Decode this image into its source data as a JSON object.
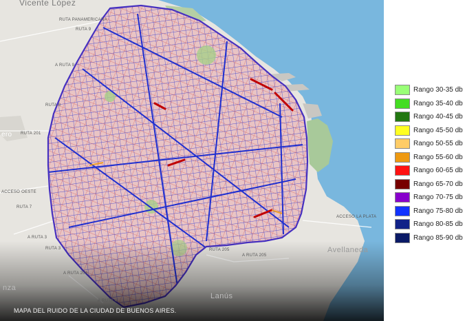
{
  "map": {
    "labels": {
      "vicente_lopez": "Vicente López",
      "ruta_panamericana": "RUTA PANAMERICANA",
      "ruta_9_top": "RUTA 9",
      "a_ruta_9": "A RUTA 9",
      "ruta_8": "RUTA 8",
      "zero": "ero",
      "ruta_201": "RUTA 201",
      "acceso_oeste": "ACCESO OESTE",
      "ruta_7": "RUTA 7",
      "a_ruta_3": "A RUTA 3",
      "ruta_3": "RUTA 3",
      "ruta_205": "RUTA 205",
      "a_ruta_205": "A RUTA 205",
      "a_ruta_204": "A RUTA 204",
      "a_ruta_4": "A RUTA 4",
      "acceso_la_plata": "ACCESO LA PLATA",
      "avellaneda": "Avellaneda",
      "lanus": "Lanús",
      "nza": "nza"
    },
    "caption": "MAPA DEL RUIDO DE LA CIUDAD DE BUENOS AIRES."
  },
  "legend": {
    "items": [
      {
        "label": "Rango 30-35 db",
        "color": "#99ff77"
      },
      {
        "label": "Rango 35-40 db",
        "color": "#44dd22"
      },
      {
        "label": "Rango 40-45 db",
        "color": "#227711"
      },
      {
        "label": "Rango 45-50 db",
        "color": "#ffff22"
      },
      {
        "label": "Rango 50-55 db",
        "color": "#ffcc66"
      },
      {
        "label": "Rango 55-60 db",
        "color": "#ee9911"
      },
      {
        "label": "Rango 60-65 db",
        "color": "#ff1111"
      },
      {
        "label": "Rango 65-70 db",
        "color": "#770000"
      },
      {
        "label": "Rango 70-75 db",
        "color": "#8800cc"
      },
      {
        "label": "Rango 75-80 db",
        "color": "#1133ff"
      },
      {
        "label": "Rango 80-85 db",
        "color": "#112288"
      },
      {
        "label": "Rango 85-90 db",
        "color": "#0a1a66"
      }
    ]
  }
}
